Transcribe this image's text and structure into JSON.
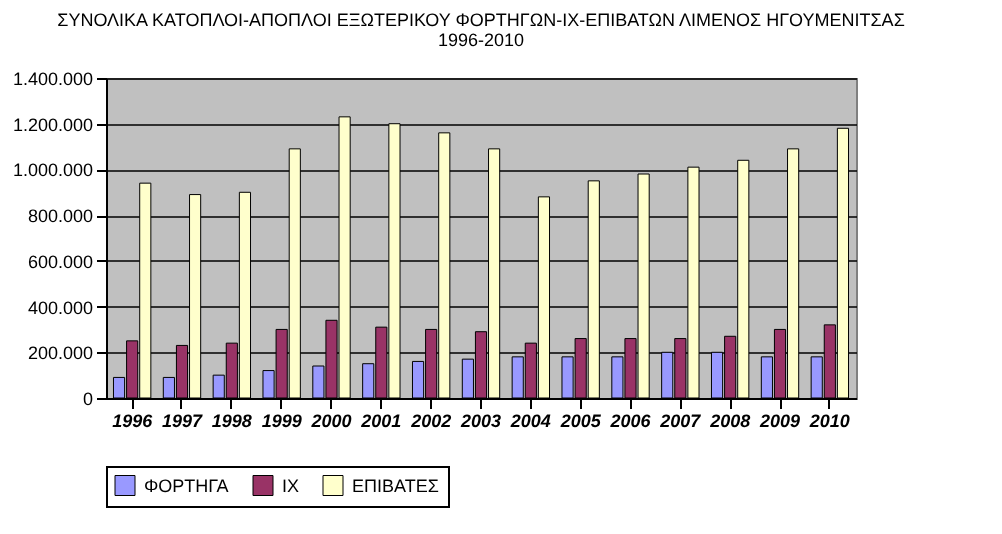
{
  "chart_data": {
    "type": "bar",
    "title": "ΣΥΝΟΛΙΚΑ ΚΑΤΟΠΛΟΙ-ΑΠΟΠΛΟΙ ΕΞΩΤΕΡΙΚΟΥ ΦΟΡΤΗΓΩΝ-ΙΧ-ΕΠΙΒΑΤΩΝ  ΛΙΜΕΝΟΣ ΗΓΟΥΜΕΝΙΤΣΑΣ",
    "subtitle": "1996-2010",
    "categories": [
      "1996",
      "1997",
      "1998",
      "1999",
      "2000",
      "2001",
      "2002",
      "2003",
      "2004",
      "2005",
      "2006",
      "2007",
      "2008",
      "2009",
      "2010"
    ],
    "series": [
      {
        "name": "ΦΟΡΤΗΓΑ",
        "color": "#9999ff",
        "values": [
          90000,
          90000,
          100000,
          120000,
          140000,
          150000,
          160000,
          170000,
          180000,
          180000,
          180000,
          200000,
          200000,
          180000,
          180000
        ]
      },
      {
        "name": "ΙΧ",
        "color": "#993366",
        "values": [
          250000,
          230000,
          240000,
          300000,
          340000,
          310000,
          300000,
          290000,
          240000,
          260000,
          260000,
          260000,
          270000,
          300000,
          320000
        ]
      },
      {
        "name": "ΕΠΙΒΑΤΕΣ",
        "color": "#ffffcc",
        "values": [
          940000,
          890000,
          900000,
          1090000,
          1230000,
          1200000,
          1160000,
          1090000,
          880000,
          950000,
          980000,
          1010000,
          1040000,
          1090000,
          1180000
        ]
      }
    ],
    "ylim": [
      0,
      1400000
    ],
    "yticks": [
      {
        "value": 0,
        "label": "0"
      },
      {
        "value": 200000,
        "label": "200.000"
      },
      {
        "value": 400000,
        "label": "400.000"
      },
      {
        "value": 600000,
        "label": "600.000"
      },
      {
        "value": 800000,
        "label": "800.000"
      },
      {
        "value": 1000000,
        "label": "1.000.000"
      },
      {
        "value": 1200000,
        "label": "1.200.000"
      },
      {
        "value": 1400000,
        "label": "1.400.000"
      }
    ],
    "grid": "y",
    "legend": "bottom"
  }
}
